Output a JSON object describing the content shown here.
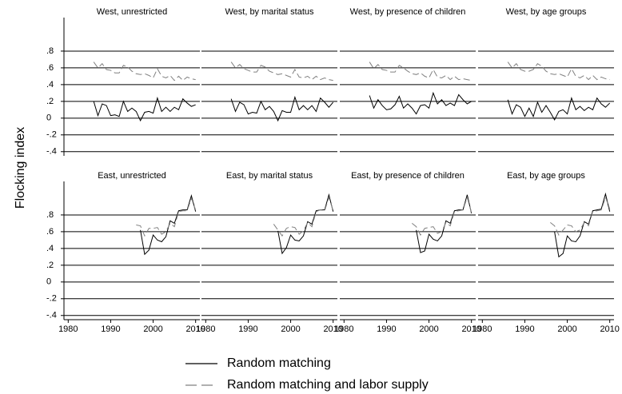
{
  "chart_data": {
    "type": "line",
    "y_label": "Flocking index",
    "xlim": [
      1979,
      2011
    ],
    "ylim": [
      -0.45,
      1.2
    ],
    "xticks": [
      1980,
      1990,
      2000,
      2010
    ],
    "yticks": [
      {
        "value": -0.4,
        "label": "-.4"
      },
      {
        "value": -0.2,
        "label": "-.2"
      },
      0,
      {
        "value": 0.2,
        "label": ".2"
      },
      {
        "value": 0.4,
        "label": ".4"
      },
      {
        "value": 0.6,
        "label": ".6"
      },
      {
        "value": 0.8,
        "label": ".8"
      }
    ],
    "grid": true,
    "legend": [
      {
        "name": "Random matching",
        "color": "#000000",
        "dashed": false
      },
      {
        "name": "Random matching and labor supply",
        "color": "#808080",
        "dashed": true
      }
    ],
    "panels": [
      {
        "title": "West, unrestricted",
        "x": [
          1986,
          1987,
          1988,
          1989,
          1990,
          1991,
          1992,
          1993,
          1994,
          1995,
          1996,
          1997,
          1998,
          1999,
          2000,
          2001,
          2002,
          2003,
          2004,
          2005,
          2006,
          2007,
          2008,
          2009,
          2010
        ],
        "series": [
          {
            "values": [
              0.2,
              0.03,
              0.17,
              0.15,
              0.03,
              0.04,
              0.02,
              0.2,
              0.08,
              0.12,
              0.08,
              -0.03,
              0.07,
              0.08,
              0.06,
              0.24,
              0.08,
              0.13,
              0.08,
              0.13,
              0.1,
              0.23,
              0.18,
              0.14,
              0.16
            ]
          },
          {
            "values": [
              0.67,
              0.6,
              0.65,
              0.58,
              0.57,
              0.54,
              0.54,
              0.63,
              0.61,
              0.56,
              0.53,
              0.52,
              0.53,
              0.51,
              0.48,
              0.59,
              0.5,
              0.48,
              0.51,
              0.45,
              0.5,
              0.45,
              0.49,
              0.47,
              0.46
            ]
          }
        ]
      },
      {
        "title": "West, by marital status",
        "x": [
          1986,
          1987,
          1988,
          1989,
          1990,
          1991,
          1992,
          1993,
          1994,
          1995,
          1996,
          1997,
          1998,
          1999,
          2000,
          2001,
          2002,
          2003,
          2004,
          2005,
          2006,
          2007,
          2008,
          2009,
          2010
        ],
        "series": [
          {
            "values": [
              0.23,
              0.08,
              0.19,
              0.16,
              0.05,
              0.07,
              0.06,
              0.2,
              0.1,
              0.14,
              0.08,
              -0.03,
              0.09,
              0.07,
              0.07,
              0.25,
              0.1,
              0.15,
              0.1,
              0.15,
              0.08,
              0.24,
              0.19,
              0.13,
              0.19
            ]
          },
          {
            "values": [
              0.67,
              0.6,
              0.64,
              0.59,
              0.57,
              0.55,
              0.55,
              0.63,
              0.61,
              0.56,
              0.54,
              0.52,
              0.53,
              0.51,
              0.49,
              0.58,
              0.49,
              0.48,
              0.5,
              0.46,
              0.5,
              0.46,
              0.48,
              0.46,
              0.45
            ]
          }
        ]
      },
      {
        "title": "West, by presence of children",
        "x": [
          1986,
          1987,
          1988,
          1989,
          1990,
          1991,
          1992,
          1993,
          1994,
          1995,
          1996,
          1997,
          1998,
          1999,
          2000,
          2001,
          2002,
          2003,
          2004,
          2005,
          2006,
          2007,
          2008,
          2009,
          2010
        ],
        "series": [
          {
            "values": [
              0.27,
              0.12,
              0.22,
              0.15,
              0.1,
              0.11,
              0.16,
              0.26,
              0.12,
              0.17,
              0.12,
              0.05,
              0.15,
              0.16,
              0.12,
              0.3,
              0.17,
              0.22,
              0.15,
              0.18,
              0.15,
              0.28,
              0.22,
              0.17,
              0.2
            ]
          },
          {
            "values": [
              0.67,
              0.59,
              0.64,
              0.58,
              0.57,
              0.55,
              0.55,
              0.63,
              0.6,
              0.56,
              0.53,
              0.52,
              0.54,
              0.5,
              0.48,
              0.58,
              0.49,
              0.48,
              0.51,
              0.46,
              0.5,
              0.46,
              0.47,
              0.46,
              0.45
            ]
          }
        ]
      },
      {
        "title": "West, by age groups",
        "x": [
          1986,
          1987,
          1988,
          1989,
          1990,
          1991,
          1992,
          1993,
          1994,
          1995,
          1996,
          1997,
          1998,
          1999,
          2000,
          2001,
          2002,
          2003,
          2004,
          2005,
          2006,
          2007,
          2008,
          2009,
          2010
        ],
        "series": [
          {
            "values": [
              0.22,
              0.05,
              0.16,
              0.13,
              0.02,
              0.12,
              0.02,
              0.19,
              0.07,
              0.15,
              0.07,
              -0.02,
              0.08,
              0.1,
              0.05,
              0.24,
              0.1,
              0.14,
              0.09,
              0.13,
              0.1,
              0.24,
              0.17,
              0.13,
              0.18
            ]
          },
          {
            "values": [
              0.67,
              0.6,
              0.65,
              0.58,
              0.56,
              0.56,
              0.58,
              0.65,
              0.62,
              0.56,
              0.53,
              0.52,
              0.53,
              0.51,
              0.49,
              0.59,
              0.5,
              0.48,
              0.51,
              0.46,
              0.51,
              0.46,
              0.49,
              0.47,
              0.46
            ]
          }
        ]
      },
      {
        "title": "East, unrestricted",
        "x": [
          1996,
          1997,
          1998,
          1999,
          2000,
          2001,
          2002,
          2003,
          2004,
          2005,
          2006,
          2007,
          2008,
          2009,
          2010
        ],
        "series": [
          {
            "values": [
              null,
              0.62,
              0.33,
              0.38,
              0.56,
              0.5,
              0.48,
              0.54,
              0.73,
              0.7,
              0.85,
              0.86,
              0.86,
              1.03,
              0.84
            ]
          },
          {
            "values": [
              0.68,
              0.67,
              0.55,
              0.64,
              0.64,
              0.65,
              0.57,
              0.6,
              0.7,
              0.66,
              0.84,
              0.85,
              0.85,
              1.0,
              0.86
            ]
          }
        ]
      },
      {
        "title": "East, by marital status",
        "x": [
          1996,
          1997,
          1998,
          1999,
          2000,
          2001,
          2002,
          2003,
          2004,
          2005,
          2006,
          2007,
          2008,
          2009,
          2010
        ],
        "series": [
          {
            "values": [
              null,
              0.61,
              0.34,
              0.41,
              0.56,
              0.5,
              0.49,
              0.55,
              0.72,
              0.69,
              0.85,
              0.86,
              0.86,
              1.04,
              0.84
            ]
          },
          {
            "values": [
              0.69,
              0.62,
              0.55,
              0.64,
              0.66,
              0.65,
              0.57,
              0.61,
              0.71,
              0.66,
              0.84,
              0.86,
              0.85,
              1.01,
              0.85
            ]
          }
        ]
      },
      {
        "title": "East, by presence of children",
        "x": [
          1996,
          1997,
          1998,
          1999,
          2000,
          2001,
          2002,
          2003,
          2004,
          2005,
          2006,
          2007,
          2008,
          2009,
          2010
        ],
        "series": [
          {
            "values": [
              null,
              0.62,
              0.35,
              0.37,
              0.57,
              0.51,
              0.49,
              0.55,
              0.73,
              0.7,
              0.85,
              0.86,
              0.86,
              1.04,
              0.82
            ]
          },
          {
            "values": [
              0.7,
              0.66,
              0.56,
              0.64,
              0.65,
              0.66,
              0.58,
              0.6,
              0.71,
              0.67,
              0.84,
              0.85,
              0.86,
              1.01,
              0.83
            ]
          }
        ]
      },
      {
        "title": "East, by age groups",
        "x": [
          1996,
          1997,
          1998,
          1999,
          2000,
          2001,
          2002,
          2003,
          2004,
          2005,
          2006,
          2007,
          2008,
          2009,
          2010
        ],
        "series": [
          {
            "values": [
              null,
              0.6,
              0.3,
              0.34,
              0.55,
              0.49,
              0.48,
              0.55,
              0.72,
              0.69,
              0.85,
              0.86,
              0.87,
              1.05,
              0.84
            ]
          },
          {
            "values": [
              0.71,
              0.67,
              0.56,
              0.62,
              0.68,
              0.67,
              0.6,
              0.62,
              0.71,
              0.67,
              0.84,
              0.85,
              0.86,
              1.01,
              0.87
            ]
          }
        ]
      }
    ]
  }
}
